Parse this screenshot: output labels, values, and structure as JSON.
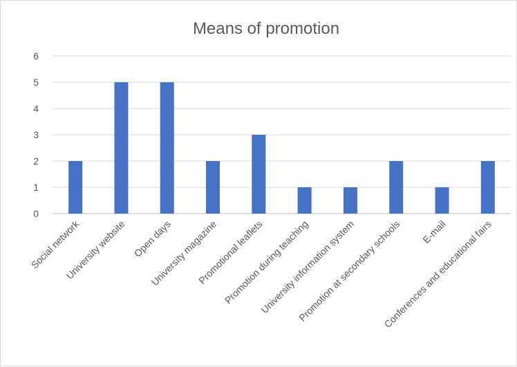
{
  "chart_data": {
    "type": "bar",
    "title": "Means of promotion",
    "xlabel": "",
    "ylabel": "",
    "ylim": [
      0,
      6
    ],
    "yticks": [
      "0",
      "1",
      "2",
      "3",
      "4",
      "5",
      "6"
    ],
    "grid": true,
    "categories": [
      "Social network",
      "University website",
      "Open days",
      "University magazine",
      "Promotional leaflets",
      "Promotion during teaching",
      "University information system",
      "Promotion at secondary schools",
      "E-mail",
      "Conferences and educational fairs"
    ],
    "values": [
      2,
      5,
      5,
      2,
      3,
      1,
      1,
      2,
      1,
      2
    ],
    "bar_color": "#4472C4"
  }
}
